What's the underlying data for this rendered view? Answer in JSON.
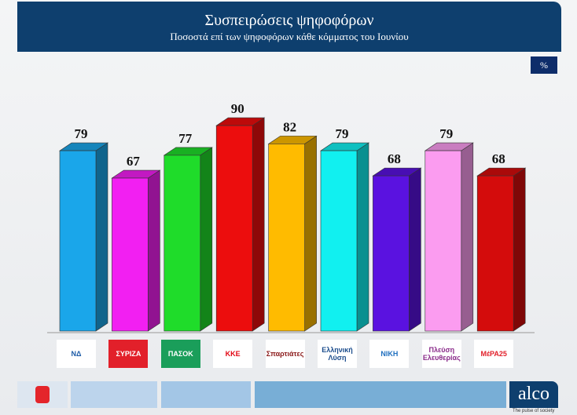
{
  "chart_data": {
    "type": "bar",
    "title": "Συσπειρώσεις ψηφοφόρων",
    "subtitle": "Ποσοστά επί των ψηφοφόρων κάθε κόμματος του Ιουνίου",
    "unit_badge": "%",
    "categories": [
      "ΝΔ",
      "ΣΥΡΙΖΑ",
      "ΠΑΣΟΚ",
      "ΚΚΕ",
      "Σπαρτιάτες",
      "Ελληνική Λύση",
      "ΝΙΚΗ",
      "Πλεύση Ελευθερίας",
      "ΜέΡΑ25"
    ],
    "values": [
      79,
      67,
      77,
      90,
      82,
      79,
      68,
      79,
      68
    ],
    "colors": [
      "#1aa6ea",
      "#f21ff2",
      "#1fdc2a",
      "#ec0d0d",
      "#ffbb00",
      "#11f0f0",
      "#5a12e0",
      "#fb9cf0",
      "#d40c0c"
    ],
    "ylim": [
      0,
      100
    ],
    "grid": false,
    "data_labels": true
  },
  "logos": [
    "ΝΔ",
    "ΣΥΡΙΖΑ",
    "ΠΑΣΟΚ",
    "ΚΚΕ",
    "Σπαρτιάτες",
    "Ελληνική Λύση",
    "ΝΙΚΗ",
    "Πλεύση Ελευθερίας",
    "ΜέΡΑ25"
  ],
  "footer": {
    "brand": "alco",
    "tagline": "The pulse of society",
    "left_logo": "Alpha"
  }
}
